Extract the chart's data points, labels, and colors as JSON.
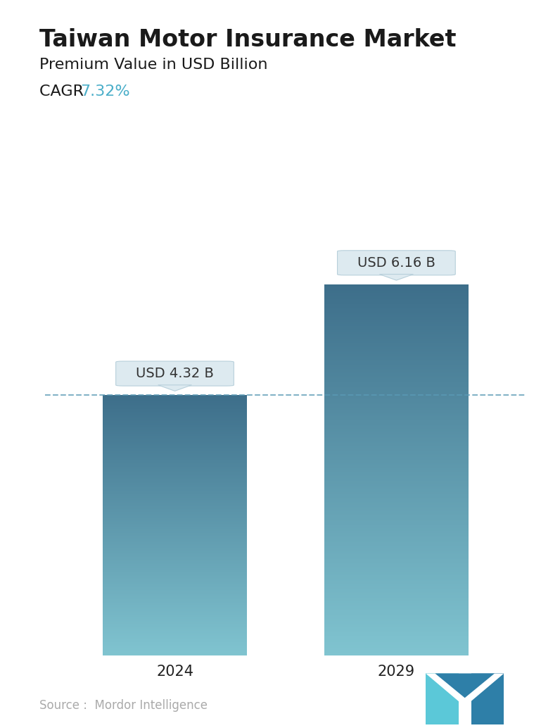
{
  "title": "Taiwan Motor Insurance Market",
  "subtitle": "Premium Value in USD Billion",
  "cagr_label": "CAGR  ",
  "cagr_value": "7.32%",
  "cagr_color": "#4aaec9",
  "categories": [
    "2024",
    "2029"
  ],
  "values": [
    4.32,
    6.16
  ],
  "labels": [
    "USD 4.32 B",
    "USD 6.16 B"
  ],
  "bar_color_top": "#3d6e8a",
  "bar_color_bottom": "#80c4d0",
  "dashed_line_color": "#5a9ab5",
  "dashed_line_value": 4.32,
  "source_text": "Source :  Mordor Intelligence",
  "source_color": "#aaaaaa",
  "background_color": "#ffffff",
  "ylim": [
    0,
    7.5
  ],
  "title_fontsize": 24,
  "subtitle_fontsize": 16,
  "cagr_fontsize": 16,
  "label_fontsize": 14,
  "tick_fontsize": 15,
  "source_fontsize": 12,
  "callout_facecolor": "#ddeaf0",
  "callout_edgecolor": "#b8d0db",
  "callout_text_color": "#333333",
  "logo_color_left": "#5bc8d8",
  "logo_color_right": "#2e7fa8"
}
